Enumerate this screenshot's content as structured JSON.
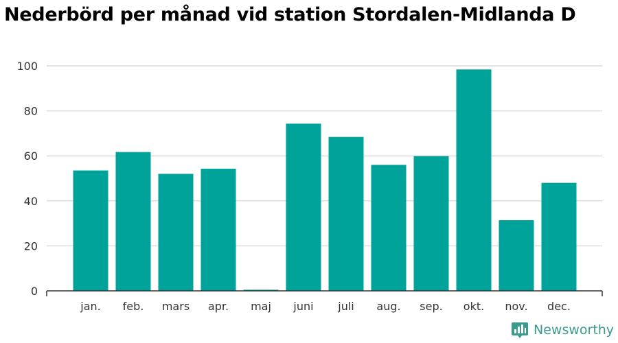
{
  "chart_data": {
    "type": "bar",
    "title": "Nederbörd per månad vid station Stordalen-Midlanda D",
    "xlabel": "",
    "ylabel": "",
    "categories": [
      "jan.",
      "feb.",
      "mars",
      "apr.",
      "maj",
      "juni",
      "juli",
      "aug.",
      "sep.",
      "okt.",
      "nov.",
      "dec."
    ],
    "values": [
      53.5,
      61.7,
      52.0,
      54.3,
      0.5,
      74.3,
      68.4,
      56.0,
      59.9,
      98.4,
      31.4,
      48.0
    ],
    "ylim": [
      0,
      100
    ],
    "yticks": [
      "0",
      "20",
      "40",
      "60",
      "80",
      "100"
    ],
    "grid": true,
    "legend": "none",
    "bar_color": "#00a39a"
  },
  "branding": {
    "logo_text": "Newsworthy",
    "logo_color": "#3a9b8d",
    "logo_icon": "bar-chart-logo-icon"
  }
}
